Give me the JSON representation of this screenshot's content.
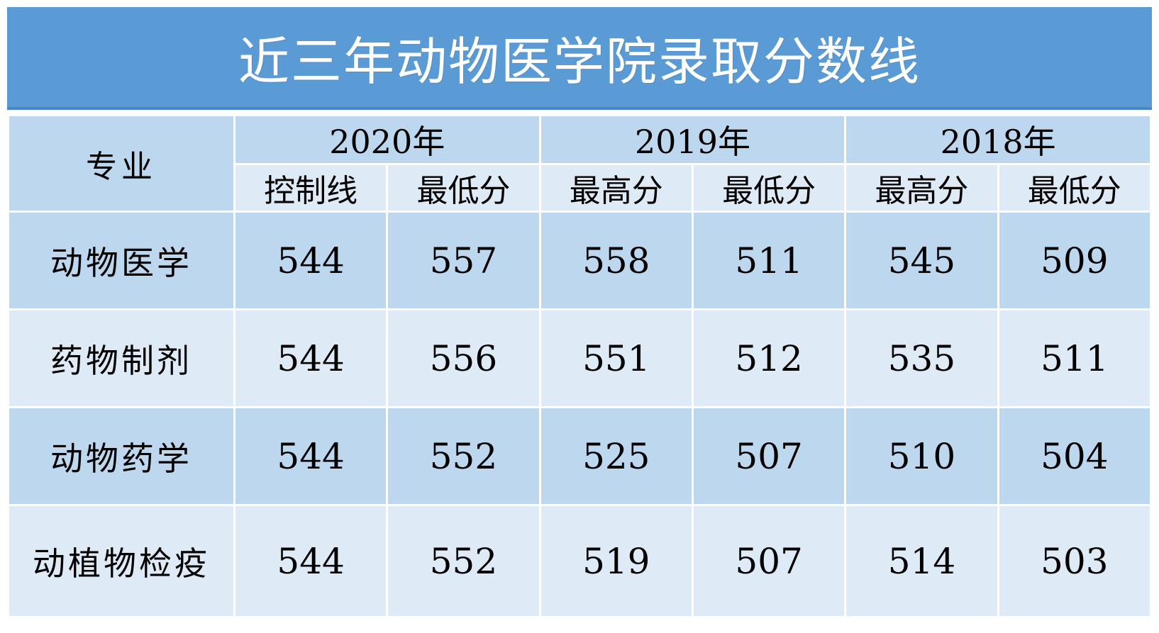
{
  "colors": {
    "banner": "#5b9bd5",
    "banner_edge": "#4a86c4",
    "band_dark": "#bdd7ee",
    "band_light": "#deeaf6",
    "gridline": "#ffffff",
    "title_text": "#ffffff",
    "body_text": "#000000"
  },
  "chart_data": {
    "type": "table",
    "title": "近三年动物医学院录取分数线",
    "header": {
      "major_label": "专业",
      "year_groups": [
        {
          "label": "2020年",
          "columns": [
            "控制线",
            "最低分"
          ]
        },
        {
          "label": "2019年",
          "columns": [
            "最高分",
            "最低分"
          ]
        },
        {
          "label": "2018年",
          "columns": [
            "最高分",
            "最低分"
          ]
        }
      ]
    },
    "rows": [
      {
        "major": "动物医学",
        "values": [
          544,
          557,
          558,
          511,
          545,
          509
        ]
      },
      {
        "major": "药物制剂",
        "values": [
          544,
          556,
          551,
          512,
          535,
          511
        ]
      },
      {
        "major": "动物药学",
        "values": [
          544,
          552,
          525,
          507,
          510,
          504
        ]
      },
      {
        "major": "动植物检疫",
        "values": [
          544,
          552,
          519,
          507,
          514,
          503
        ]
      }
    ]
  }
}
